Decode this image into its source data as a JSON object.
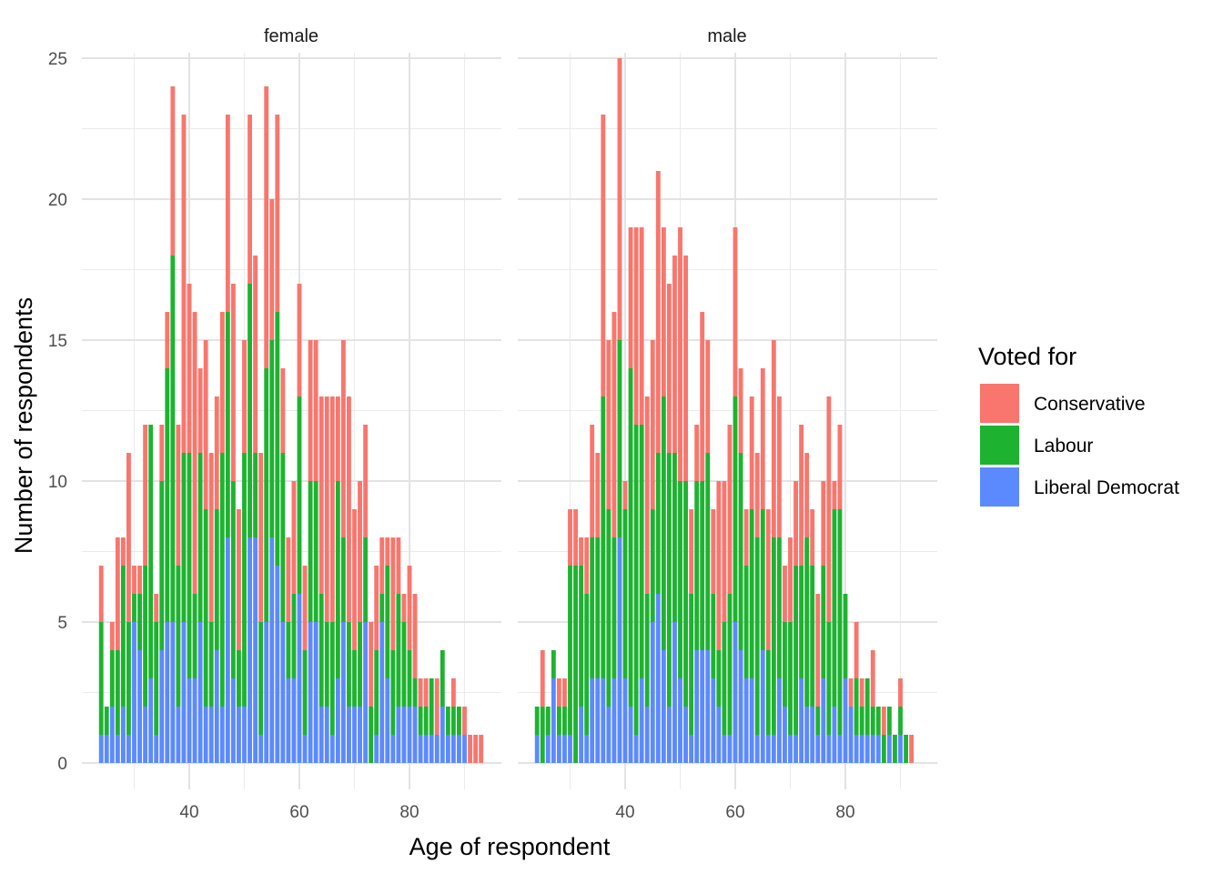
{
  "chart_data": {
    "type": "bar",
    "stacked": true,
    "xlabel": "Age of respondent",
    "ylabel": "Number of respondents",
    "ylim": [
      0,
      25
    ],
    "yticks": [
      0,
      5,
      10,
      15,
      20,
      25
    ],
    "xlim": [
      22.7,
      95.3
    ],
    "xticks": [
      40,
      60,
      80
    ],
    "grid": true,
    "legend": {
      "title": "Voted for",
      "position": "right",
      "entries": [
        {
          "name": "Conservative",
          "color": "#F8766D"
        },
        {
          "name": "Labour",
          "color": "#1DB330"
        },
        {
          "name": "Liberal Democrat",
          "color": "#5B8AFF"
        }
      ]
    },
    "series_order": [
      "Liberal Democrat",
      "Labour",
      "Conservative"
    ],
    "panels": [
      {
        "label": "female",
        "x": [
          24,
          25,
          26,
          27,
          28,
          29,
          30,
          31,
          32,
          33,
          34,
          35,
          36,
          37,
          38,
          39,
          40,
          41,
          42,
          43,
          44,
          45,
          46,
          47,
          48,
          49,
          50,
          51,
          52,
          53,
          54,
          55,
          56,
          57,
          58,
          59,
          60,
          61,
          62,
          63,
          64,
          65,
          66,
          67,
          68,
          69,
          70,
          71,
          72,
          73,
          74,
          75,
          76,
          77,
          78,
          79,
          80,
          81,
          82,
          83,
          84,
          85,
          86,
          87,
          88,
          89,
          90,
          91,
          92,
          93
        ],
        "liberal_democrat": [
          1,
          1,
          2,
          1,
          2,
          1,
          5,
          4,
          2,
          3,
          1,
          4,
          5,
          5,
          2,
          5,
          3,
          3,
          5,
          2,
          2,
          4,
          2,
          8,
          3,
          2,
          2,
          8,
          8,
          1,
          5,
          8,
          7,
          5,
          3,
          3,
          6,
          1,
          5,
          5,
          2,
          2,
          1,
          3,
          5,
          2,
          2,
          2,
          5,
          0,
          1,
          5,
          3,
          1,
          2,
          2,
          2,
          2,
          1,
          1,
          1,
          1,
          2,
          1,
          1,
          1,
          1,
          0,
          0,
          0
        ],
        "labour": [
          4,
          1,
          2,
          3,
          5,
          4,
          1,
          2,
          5,
          9,
          4,
          6,
          9,
          13,
          5,
          6,
          8,
          3,
          6,
          7,
          3,
          5,
          9,
          8,
          7,
          2,
          9,
          9,
          3,
          4,
          9,
          7,
          9,
          6,
          2,
          3,
          7,
          3,
          5,
          5,
          4,
          3,
          4,
          7,
          3,
          3,
          2,
          3,
          3,
          2,
          3,
          1,
          4,
          3,
          4,
          3,
          2,
          1,
          1,
          1,
          2,
          0,
          2,
          1,
          1,
          1,
          0,
          0,
          0,
          0
        ],
        "conservative": [
          2,
          0,
          1,
          4,
          1,
          6,
          1,
          1,
          5,
          0,
          1,
          2,
          2,
          6,
          5,
          12,
          6,
          10,
          3,
          6,
          6,
          4,
          5,
          7,
          7,
          5,
          4,
          6,
          7,
          6,
          10,
          5,
          7,
          3,
          3,
          4,
          4,
          3,
          5,
          5,
          7,
          8,
          8,
          3,
          7,
          8,
          5,
          5,
          4,
          3,
          3,
          2,
          1,
          4,
          2,
          1,
          3,
          3,
          1,
          1,
          0,
          2,
          0,
          0,
          1,
          0,
          1,
          1,
          1,
          1
        ]
      },
      {
        "label": "male",
        "x": [
          24,
          25,
          26,
          27,
          28,
          29,
          30,
          31,
          32,
          33,
          34,
          35,
          36,
          37,
          38,
          39,
          40,
          41,
          42,
          43,
          44,
          45,
          46,
          47,
          48,
          49,
          50,
          51,
          52,
          53,
          54,
          55,
          56,
          57,
          58,
          59,
          60,
          61,
          62,
          63,
          64,
          65,
          66,
          67,
          68,
          69,
          70,
          71,
          72,
          73,
          74,
          75,
          76,
          77,
          78,
          79,
          80,
          81,
          82,
          83,
          84,
          85,
          86,
          87,
          88,
          89,
          90,
          91,
          92
        ],
        "liberal_democrat": [
          1,
          0,
          1,
          3,
          1,
          1,
          1,
          0,
          2,
          1,
          3,
          3,
          3,
          2,
          3,
          8,
          3,
          2,
          1,
          3,
          2,
          5,
          6,
          4,
          2,
          5,
          3,
          2,
          1,
          4,
          4,
          4,
          3,
          2,
          1,
          1,
          5,
          4,
          3,
          3,
          1,
          4,
          1,
          1,
          3,
          2,
          1,
          1,
          3,
          2,
          2,
          1,
          3,
          1,
          2,
          1,
          3,
          2,
          1,
          1,
          1,
          1,
          1,
          0,
          1,
          0,
          1,
          0,
          0
        ],
        "labour": [
          1,
          2,
          1,
          1,
          1,
          1,
          6,
          7,
          5,
          5,
          5,
          5,
          10,
          7,
          5,
          7,
          6,
          12,
          11,
          9,
          4,
          4,
          5,
          9,
          9,
          6,
          7,
          8,
          5,
          6,
          6,
          7,
          3,
          2,
          4,
          5,
          8,
          7,
          4,
          6,
          7,
          5,
          3,
          7,
          5,
          3,
          4,
          6,
          4,
          6,
          5,
          1,
          4,
          4,
          7,
          8,
          3,
          0,
          2,
          1,
          2,
          1,
          1,
          1,
          1,
          1,
          1,
          1,
          0
        ],
        "conservative": [
          0,
          2,
          0,
          0,
          1,
          1,
          2,
          2,
          1,
          2,
          4,
          3,
          10,
          6,
          8,
          10,
          1,
          5,
          7,
          7,
          7,
          6,
          10,
          6,
          6,
          7,
          9,
          8,
          3,
          2,
          6,
          4,
          3,
          6,
          5,
          6,
          6,
          3,
          2,
          4,
          3,
          5,
          5,
          7,
          5,
          2,
          3,
          3,
          5,
          3,
          2,
          4,
          3,
          8,
          1,
          3,
          0,
          1,
          2,
          1,
          0,
          2,
          0,
          1,
          0,
          0,
          1,
          0,
          1
        ]
      }
    ]
  }
}
